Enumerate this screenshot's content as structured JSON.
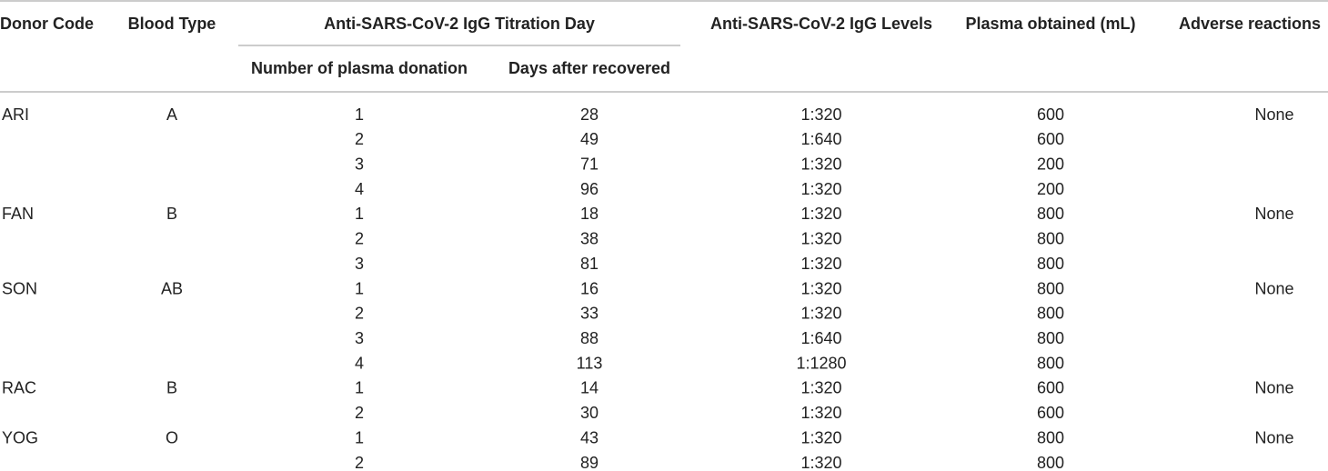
{
  "table": {
    "header": {
      "donor_code": "Donor Code",
      "blood_type": "Blood Type",
      "titration_day": "Anti-SARS-CoV-2 IgG Titration Day",
      "number_of_donation": "Number of plasma donation",
      "days_after_recovered": "Days after recovered",
      "igg_levels": "Anti-SARS-CoV-2 IgG Levels",
      "plasma_obtained": "Plasma obtained (mL)",
      "adverse_reactions": "Adverse reactions"
    },
    "donors": [
      {
        "code": "ARI",
        "blood_type": "A",
        "adverse_reactions": "None",
        "donations": [
          {
            "number": 1,
            "days": 28,
            "level": "1:320",
            "plasma": 600
          },
          {
            "number": 2,
            "days": 49,
            "level": "1:640",
            "plasma": 600
          },
          {
            "number": 3,
            "days": 71,
            "level": "1:320",
            "plasma": 200
          },
          {
            "number": 4,
            "days": 96,
            "level": "1:320",
            "plasma": 200
          }
        ]
      },
      {
        "code": "FAN",
        "blood_type": "B",
        "adverse_reactions": "None",
        "donations": [
          {
            "number": 1,
            "days": 18,
            "level": "1:320",
            "plasma": 800
          },
          {
            "number": 2,
            "days": 38,
            "level": "1:320",
            "plasma": 800
          },
          {
            "number": 3,
            "days": 81,
            "level": "1:320",
            "plasma": 800
          }
        ]
      },
      {
        "code": "SON",
        "blood_type": "AB",
        "adverse_reactions": "None",
        "donations": [
          {
            "number": 1,
            "days": 16,
            "level": "1:320",
            "plasma": 800
          },
          {
            "number": 2,
            "days": 33,
            "level": "1:320",
            "plasma": 800
          },
          {
            "number": 3,
            "days": 88,
            "level": "1:640",
            "plasma": 800
          },
          {
            "number": 4,
            "days": 113,
            "level": "1:1280",
            "plasma": 800
          }
        ]
      },
      {
        "code": "RAC",
        "blood_type": "B",
        "adverse_reactions": "None",
        "donations": [
          {
            "number": 1,
            "days": 14,
            "level": "1:320",
            "plasma": 600
          },
          {
            "number": 2,
            "days": 30,
            "level": "1:320",
            "plasma": 600
          }
        ]
      },
      {
        "code": "YOG",
        "blood_type": "O",
        "adverse_reactions": "None",
        "donations": [
          {
            "number": 1,
            "days": 43,
            "level": "1:320",
            "plasma": 800
          },
          {
            "number": 2,
            "days": 89,
            "level": "1:320",
            "plasma": 800
          }
        ]
      }
    ]
  }
}
